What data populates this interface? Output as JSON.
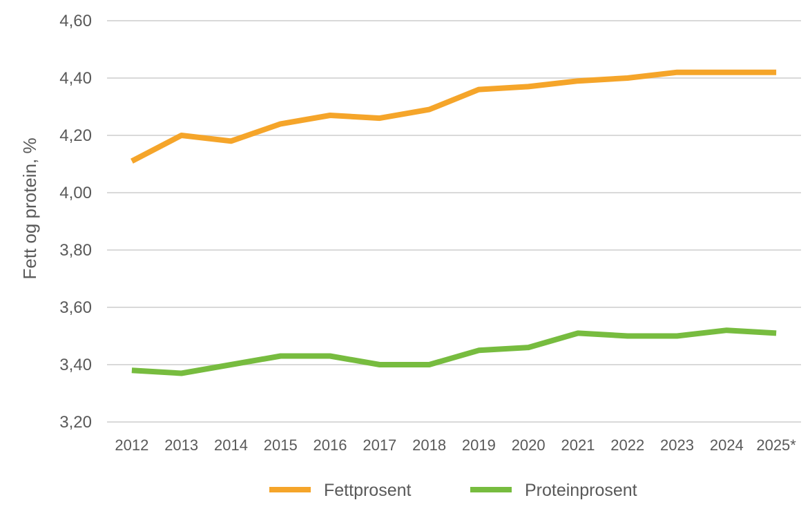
{
  "chart_data": {
    "type": "line",
    "ylabel": "Fett og protein, %",
    "xlabel": "",
    "categories": [
      "2012",
      "2013",
      "2014",
      "2015",
      "2016",
      "2017",
      "2018",
      "2019",
      "2020",
      "2021",
      "2022",
      "2023",
      "2024",
      "2025*"
    ],
    "ylim": [
      3.2,
      4.6
    ],
    "yticks": [
      "3,20",
      "3,40",
      "3,60",
      "3,80",
      "4,00",
      "4,20",
      "4,40",
      "4,60"
    ],
    "grid": true,
    "legend_position": "bottom",
    "series": [
      {
        "name": "Fettprosent",
        "color": "#f5a52a",
        "values": [
          4.11,
          4.2,
          4.18,
          4.24,
          4.27,
          4.26,
          4.29,
          4.36,
          4.37,
          4.39,
          4.4,
          4.42,
          4.42,
          4.42
        ]
      },
      {
        "name": "Proteinprosent",
        "color": "#77bc3f",
        "values": [
          3.38,
          3.37,
          3.4,
          3.43,
          3.43,
          3.4,
          3.4,
          3.45,
          3.46,
          3.51,
          3.5,
          3.5,
          3.52,
          3.51
        ]
      }
    ]
  }
}
